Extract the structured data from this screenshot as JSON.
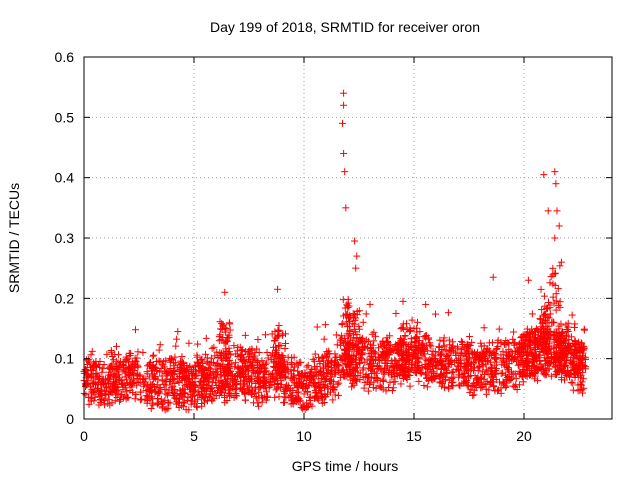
{
  "chart_data": {
    "type": "scatter",
    "title": "Day 199 of 2018, SRMTID for receiver oron",
    "xlabel": "GPS time / hours",
    "ylabel": "SRMTID / TECUs",
    "xlim": [
      0,
      24
    ],
    "ylim": [
      0,
      0.6
    ],
    "xticks": [
      0,
      5,
      10,
      15,
      20
    ],
    "xtick_labels": [
      "0",
      "5",
      "10",
      "15",
      "20"
    ],
    "yticks": [
      0,
      0.1,
      0.2,
      0.3,
      0.4,
      0.5,
      0.6
    ],
    "ytick_labels": [
      "0",
      "0.1",
      "0.2",
      "0.3",
      "0.4",
      "0.5",
      "0.6"
    ],
    "grid": true,
    "marker": "+",
    "marker_color": "#ff0000",
    "series": [
      {
        "name": "SRMTID",
        "baseline": [
          [
            0,
            0.06
          ],
          [
            1,
            0.065
          ],
          [
            2,
            0.07
          ],
          [
            3,
            0.065
          ],
          [
            4,
            0.055
          ],
          [
            5,
            0.06
          ],
          [
            6,
            0.065
          ],
          [
            7,
            0.075
          ],
          [
            8,
            0.07
          ],
          [
            9,
            0.07
          ],
          [
            10,
            0.05
          ],
          [
            11,
            0.07
          ],
          [
            12,
            0.1
          ],
          [
            13,
            0.09
          ],
          [
            14,
            0.09
          ],
          [
            15,
            0.1
          ],
          [
            16,
            0.09
          ],
          [
            17,
            0.09
          ],
          [
            18,
            0.08
          ],
          [
            19,
            0.085
          ],
          [
            20,
            0.1
          ],
          [
            21,
            0.12
          ],
          [
            22,
            0.1
          ],
          [
            22.8,
            0.08
          ]
        ],
        "peaks": [
          {
            "x": 11.8,
            "y": 0.54
          },
          {
            "x": 11.8,
            "y": 0.52
          },
          {
            "x": 11.75,
            "y": 0.49
          },
          {
            "x": 11.8,
            "y": 0.44
          },
          {
            "x": 11.85,
            "y": 0.41
          },
          {
            "x": 11.9,
            "y": 0.35
          },
          {
            "x": 12.3,
            "y": 0.295
          },
          {
            "x": 12.4,
            "y": 0.27
          },
          {
            "x": 12.35,
            "y": 0.25
          },
          {
            "x": 20.9,
            "y": 0.405
          },
          {
            "x": 21.4,
            "y": 0.41
          },
          {
            "x": 21.45,
            "y": 0.39
          },
          {
            "x": 21.5,
            "y": 0.345
          },
          {
            "x": 21.1,
            "y": 0.345
          },
          {
            "x": 21.6,
            "y": 0.32
          },
          {
            "x": 21.4,
            "y": 0.3
          },
          {
            "x": 21.7,
            "y": 0.26
          },
          {
            "x": 20.2,
            "y": 0.23
          },
          {
            "x": 18.6,
            "y": 0.235
          },
          {
            "x": 8.8,
            "y": 0.215
          },
          {
            "x": 6.4,
            "y": 0.21
          },
          {
            "x": 14.5,
            "y": 0.195
          },
          {
            "x": 13.0,
            "y": 0.19
          }
        ]
      }
    ]
  }
}
